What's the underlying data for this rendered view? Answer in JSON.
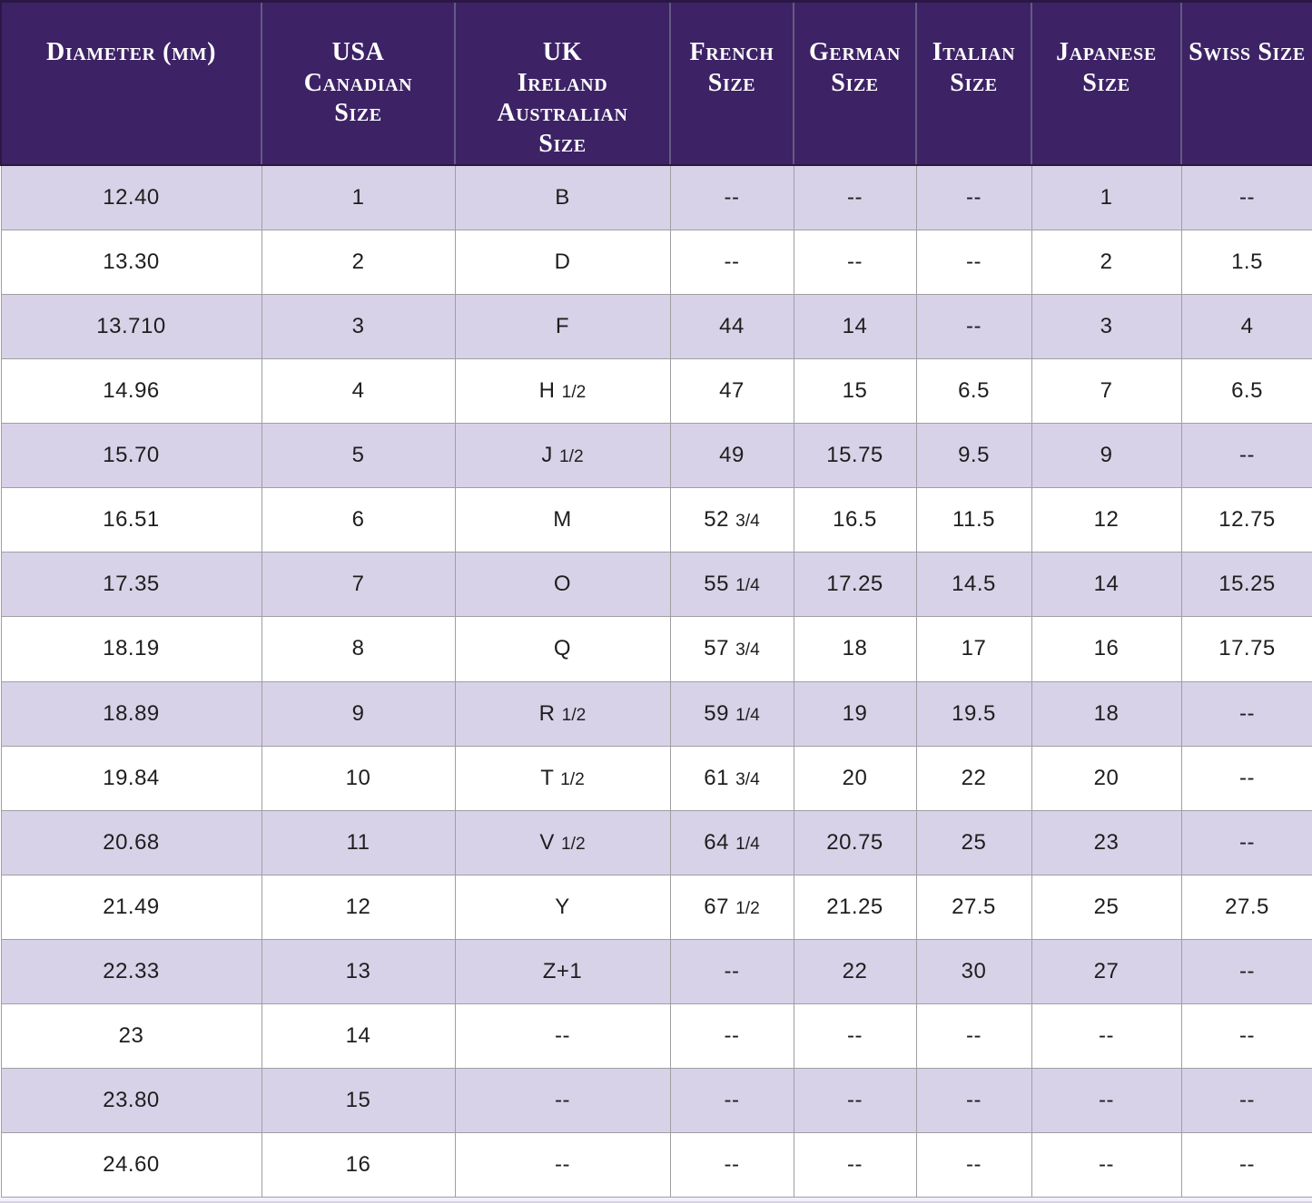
{
  "colors": {
    "header_bg": "#3d2365",
    "header_text": "#ffffff",
    "header_divider": "#655a84",
    "header_edge": "#2b1746",
    "row_alt_bg": "#d8d2e8",
    "row_bg": "#ffffff",
    "grid_line": "#9f9fa3",
    "cell_text": "#1e1e1e"
  },
  "chart_data": {
    "type": "table",
    "columns": [
      "Diameter (mm)",
      "USA Canadian Size",
      "UK Ireland Australian Size",
      "French Size",
      "German Size",
      "Italian Size",
      "Japanese Size",
      "Swiss Size"
    ],
    "header_labels": [
      "Diameter (mm)",
      "USA\nCanadian\nSize",
      "UK\nIreland\nAustralian\nSize",
      "French\nSize",
      "German\nSize",
      "Italian\nSize",
      "Japanese Size",
      "Swiss Size"
    ],
    "missing_value_marker": "--",
    "rows": [
      [
        "12.40",
        "1",
        "B",
        "--",
        "--",
        "--",
        "1",
        "--"
      ],
      [
        "13.30",
        "2",
        "D",
        "--",
        "--",
        "--",
        "2",
        "1.5"
      ],
      [
        "13.710",
        "3",
        "F",
        "44",
        "14",
        "--",
        "3",
        "4"
      ],
      [
        "14.96",
        "4",
        "H 1/2",
        "47",
        "15",
        "6.5",
        "7",
        "6.5"
      ],
      [
        "15.70",
        "5",
        "J 1/2",
        "49",
        "15.75",
        "9.5",
        "9",
        "--"
      ],
      [
        "16.51",
        "6",
        "M",
        "52 3/4",
        "16.5",
        "11.5",
        "12",
        "12.75"
      ],
      [
        "17.35",
        "7",
        "O",
        "55 1/4",
        "17.25",
        "14.5",
        "14",
        "15.25"
      ],
      [
        "18.19",
        "8",
        "Q",
        "57 3/4",
        "18",
        "17",
        "16",
        "17.75"
      ],
      [
        "18.89",
        "9",
        "R 1/2",
        "59 1/4",
        "19",
        "19.5",
        "18",
        "--"
      ],
      [
        "19.84",
        "10",
        "T 1/2",
        "61 3/4",
        "20",
        "22",
        "20",
        "--"
      ],
      [
        "20.68",
        "11",
        "V 1/2",
        "64 1/4",
        "20.75",
        "25",
        "23",
        "--"
      ],
      [
        "21.49",
        "12",
        "Y",
        "67 1/2",
        "21.25",
        "27.5",
        "25",
        "27.5"
      ],
      [
        "22.33",
        "13",
        "Z+1",
        "--",
        "22",
        "30",
        "27",
        "--"
      ],
      [
        "23",
        "14",
        "--",
        "--",
        "--",
        "--",
        "--",
        "--"
      ],
      [
        "23.80",
        "15",
        "--",
        "--",
        "--",
        "--",
        "--",
        "--"
      ],
      [
        "24.60",
        "16",
        "--",
        "--",
        "--",
        "--",
        "--",
        "--"
      ]
    ]
  }
}
